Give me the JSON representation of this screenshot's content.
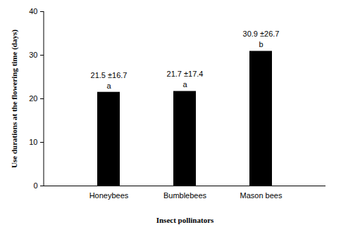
{
  "chart_data": {
    "type": "bar",
    "x_label": "Insect pollinators",
    "y_label": "Use durations at the flowering time (days)",
    "categories": [
      "Honeybees",
      "Bumblebees",
      "Mason bees"
    ],
    "values": [
      21.5,
      21.7,
      30.9
    ],
    "value_labels": [
      "21.5 ±16.7",
      "21.7 ±17.4",
      "30.9 ±26.7"
    ],
    "group_letters": [
      "a",
      "a",
      "b"
    ],
    "color": "#000000",
    "ylim": [
      0,
      40
    ],
    "yticks": [
      0,
      10,
      20,
      30,
      40
    ],
    "grid": false,
    "data_labels": true
  }
}
